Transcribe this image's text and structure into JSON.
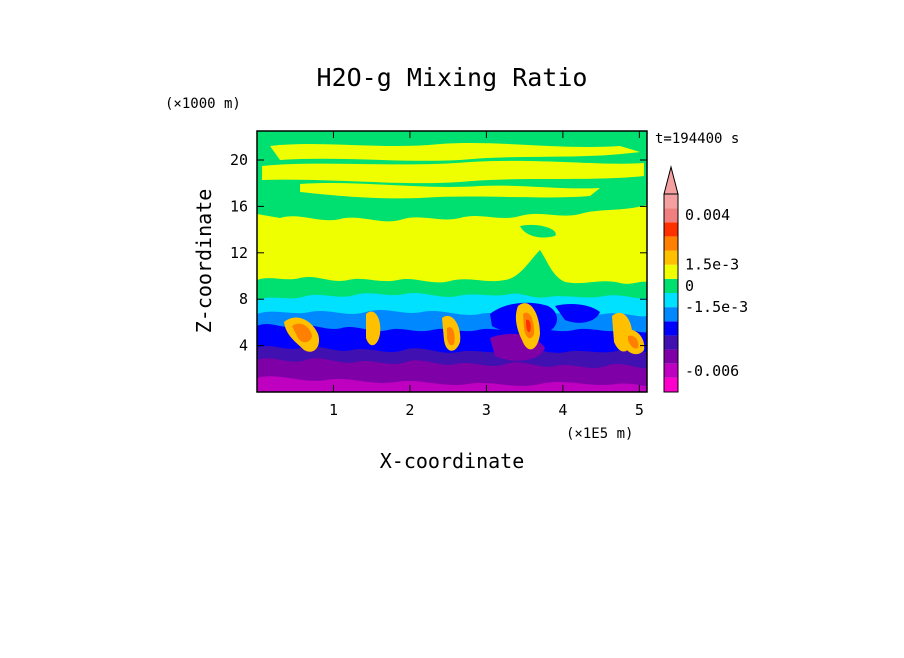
{
  "chart_data": {
    "type": "heatmap",
    "title": "H2O-g Mixing Ratio",
    "xlabel": "X-coordinate",
    "ylabel": "Z-coordinate",
    "x_unit_label": "(×1E5 m)",
    "y_unit_label": "(×1000 m)",
    "time_label": "t=194400 s",
    "xlim": [
      0,
      5.1
    ],
    "ylim": [
      0,
      22.5
    ],
    "x_ticks": [
      1,
      2,
      3,
      4,
      5
    ],
    "x_tick_labels": [
      "1",
      "2",
      "3",
      "4",
      "5"
    ],
    "y_ticks": [
      4,
      8,
      12,
      16,
      20
    ],
    "y_tick_labels": [
      "4",
      "8",
      "12",
      "16",
      "20"
    ],
    "colorbar": {
      "levels": [
        {
          "color": "#ff00cc"
        },
        {
          "color": "#c000c0"
        },
        {
          "color": "#8000a8"
        },
        {
          "color": "#4010b0"
        },
        {
          "color": "#0000ff"
        },
        {
          "color": "#0088ff"
        },
        {
          "color": "#00e0ff"
        },
        {
          "color": "#00e070"
        },
        {
          "color": "#f0ff00"
        },
        {
          "color": "#ffc000"
        },
        {
          "color": "#ff8000"
        },
        {
          "color": "#ff3000"
        },
        {
          "color": "#f08080"
        },
        {
          "color": "#f5a0a0"
        }
      ],
      "labels": [
        {
          "text": "-0.006",
          "level_index": 1
        },
        {
          "text": "-1.5e-3",
          "level_index": 5.5
        },
        {
          "text": "0",
          "level_index": 7
        },
        {
          "text": "1.5e-3",
          "level_index": 8.5
        },
        {
          "text": "0.004",
          "level_index": 12
        }
      ]
    }
  }
}
